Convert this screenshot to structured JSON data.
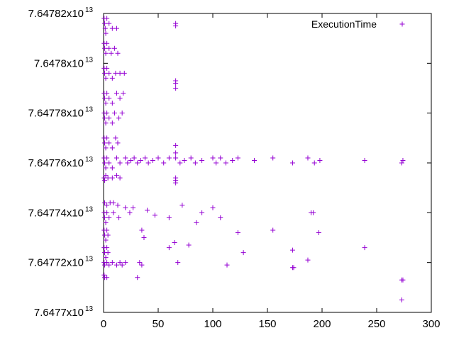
{
  "chart_data": {
    "type": "scatter",
    "title": "",
    "xlabel": "",
    "ylabel": "",
    "xlim": [
      0,
      300
    ],
    "ylim": [
      76477000000000.0,
      76478200000000.0
    ],
    "xticks": [
      {
        "value": 0,
        "label": "0"
      },
      {
        "value": 50,
        "label": "50"
      },
      {
        "value": 100,
        "label": "100"
      },
      {
        "value": 150,
        "label": "150"
      },
      {
        "value": 200,
        "label": "200"
      },
      {
        "value": 250,
        "label": "250"
      },
      {
        "value": 300,
        "label": "300"
      }
    ],
    "yticks": [
      {
        "value": 76477000000000.0,
        "mantissa": "7.6477x10",
        "exp": "13"
      },
      {
        "value": 76477200000000.0,
        "mantissa": "7.64772x10",
        "exp": "13"
      },
      {
        "value": 76477400000000.0,
        "mantissa": "7.64774x10",
        "exp": "13"
      },
      {
        "value": 76477600000000.0,
        "mantissa": "7.64776x10",
        "exp": "13"
      },
      {
        "value": 76477800000000.0,
        "mantissa": "7.64778x10",
        "exp": "13"
      },
      {
        "value": 76478000000000.0,
        "mantissa": "7.6478x10",
        "exp": "13"
      },
      {
        "value": 76478200000000.0,
        "mantissa": "7.64782x10",
        "exp": "13"
      }
    ],
    "grid": false,
    "legend_position": "top-right",
    "series": [
      {
        "name": "ExecutionTime",
        "marker": "plus",
        "color": "#9400d3",
        "points": [
          [
            0.5,
            76478180000000.0
          ],
          [
            1.0,
            76478160000000.0
          ],
          [
            1.5,
            76478140000000.0
          ],
          [
            2.0,
            76478120000000.0
          ],
          [
            3.0,
            76478180000000.0
          ],
          [
            5.0,
            76478160000000.0
          ],
          [
            8.0,
            76478140000000.0
          ],
          [
            12.0,
            76478140000000.0
          ],
          [
            0.5,
            76478080000000.0
          ],
          [
            1.0,
            76478060000000.0
          ],
          [
            2.0,
            76478040000000.0
          ],
          [
            3.0,
            76478080000000.0
          ],
          [
            5.0,
            76478060000000.0
          ],
          [
            7.0,
            76478040000000.0
          ],
          [
            10.0,
            76478060000000.0
          ],
          [
            13.0,
            76478040000000.0
          ],
          [
            0.5,
            76477980000000.0
          ],
          [
            1.0,
            76477960000000.0
          ],
          [
            2.0,
            76477940000000.0
          ],
          [
            3.0,
            76477980000000.0
          ],
          [
            5.0,
            76477960000000.0
          ],
          [
            8.0,
            76477940000000.0
          ],
          [
            11.0,
            76477960000000.0
          ],
          [
            15.0,
            76477960000000.0
          ],
          [
            19.0,
            76477960000000.0
          ],
          [
            0.5,
            76477880000000.0
          ],
          [
            1.0,
            76477860000000.0
          ],
          [
            2.0,
            76477840000000.0
          ],
          [
            3.0,
            76477880000000.0
          ],
          [
            5.0,
            76477860000000.0
          ],
          [
            8.0,
            76477840000000.0
          ],
          [
            12.0,
            76477880000000.0
          ],
          [
            15.0,
            76477860000000.0
          ],
          [
            18.0,
            76477880000000.0
          ],
          [
            0.5,
            76477800000000.0
          ],
          [
            1.0,
            76477780000000.0
          ],
          [
            2.0,
            76477760000000.0
          ],
          [
            3.0,
            76477800000000.0
          ],
          [
            5.0,
            76477780000000.0
          ],
          [
            8.0,
            76477760000000.0
          ],
          [
            10.0,
            76477800000000.0
          ],
          [
            14.0,
            76477780000000.0
          ],
          [
            17.0,
            76477800000000.0
          ],
          [
            0.5,
            76477700000000.0
          ],
          [
            1.0,
            76477680000000.0
          ],
          [
            2.0,
            76477660000000.0
          ],
          [
            3.0,
            76477700000000.0
          ],
          [
            5.0,
            76477680000000.0
          ],
          [
            8.0,
            76477660000000.0
          ],
          [
            11.0,
            76477700000000.0
          ],
          [
            13.0,
            76477680000000.0
          ],
          [
            0.5,
            76477620000000.0
          ],
          [
            1.0,
            76477600000000.0
          ],
          [
            2.0,
            76477580000000.0
          ],
          [
            3.0,
            76477620000000.0
          ],
          [
            5.0,
            76477600000000.0
          ],
          [
            8.0,
            76477580000000.0
          ],
          [
            12.0,
            76477620000000.0
          ],
          [
            15.0,
            76477600000000.0
          ],
          [
            0.5,
            76477540000000.0
          ],
          [
            1.0,
            76477530000000.0
          ],
          [
            2.0,
            76477550000000.0
          ],
          [
            4.0,
            76477540000000.0
          ],
          [
            8.0,
            76477540000000.0
          ],
          [
            12.0,
            76477550000000.0
          ],
          [
            15.0,
            76477540000000.0
          ],
          [
            20.0,
            76477620000000.0
          ],
          [
            22.0,
            76477600000000.0
          ],
          [
            25.0,
            76477610000000.0
          ],
          [
            28.0,
            76477620000000.0
          ],
          [
            31.0,
            76477600000000.0
          ],
          [
            34.0,
            76477610000000.0
          ],
          [
            38.0,
            76477620000000.0
          ],
          [
            41.0,
            76477600000000.0
          ],
          [
            45.0,
            76477610000000.0
          ],
          [
            50.0,
            76477620000000.0
          ],
          [
            55.0,
            76477600000000.0
          ],
          [
            60.0,
            76477620000000.0
          ],
          [
            66.0,
            76477620000000.0
          ],
          [
            70.0,
            76477600000000.0
          ],
          [
            74.0,
            76477610000000.0
          ],
          [
            80.0,
            76477620000000.0
          ],
          [
            84.0,
            76477600000000.0
          ],
          [
            90.0,
            76477610000000.0
          ],
          [
            100.0,
            76477620000000.0
          ],
          [
            103.0,
            76477600000000.0
          ],
          [
            107.0,
            76477620000000.0
          ],
          [
            112.0,
            76477600000000.0
          ],
          [
            118.0,
            76477610000000.0
          ],
          [
            123.0,
            76477620000000.0
          ],
          [
            138.0,
            76477610000000.0
          ],
          [
            155.0,
            76477620000000.0
          ],
          [
            173.0,
            76477600000000.0
          ],
          [
            187.0,
            76477620000000.0
          ],
          [
            193.0,
            76477600000000.0
          ],
          [
            198.0,
            76477610000000.0
          ],
          [
            239.0,
            76477610000000.0
          ],
          [
            273.0,
            76477600000000.0
          ],
          [
            274.0,
            76477610000000.0
          ],
          [
            66.0,
            76478150000000.0
          ],
          [
            66.0,
            76478160000000.0
          ],
          [
            66.0,
            76477920000000.0
          ],
          [
            66.0,
            76477900000000.0
          ],
          [
            66.0,
            76477930000000.0
          ],
          [
            66.0,
            76477670000000.0
          ],
          [
            66.0,
            76477640000000.0
          ],
          [
            66.0,
            76477530000000.0
          ],
          [
            66.0,
            76477520000000.0
          ],
          [
            66.0,
            76477540000000.0
          ],
          [
            1.0,
            76477440000000.0
          ],
          [
            3.0,
            76477430000000.0
          ],
          [
            6.0,
            76477440000000.0
          ],
          [
            9.0,
            76477440000000.0
          ],
          [
            13.0,
            76477430000000.0
          ],
          [
            0.5,
            76477400000000.0
          ],
          [
            1.0,
            76477380000000.0
          ],
          [
            2.0,
            76477360000000.0
          ],
          [
            3.0,
            76477400000000.0
          ],
          [
            5.0,
            76477380000000.0
          ],
          [
            9.0,
            76477400000000.0
          ],
          [
            14.0,
            76477380000000.0
          ],
          [
            0.5,
            76477330000000.0
          ],
          [
            1.0,
            76477310000000.0
          ],
          [
            2.0,
            76477290000000.0
          ],
          [
            3.0,
            76477330000000.0
          ],
          [
            4.0,
            76477310000000.0
          ],
          [
            0.5,
            76477260000000.0
          ],
          [
            1.0,
            76477240000000.0
          ],
          [
            2.0,
            76477220000000.0
          ],
          [
            3.0,
            76477260000000.0
          ],
          [
            4.0,
            76477240000000.0
          ],
          [
            0.5,
            76477200000000.0
          ],
          [
            1.0,
            76477190000000.0
          ],
          [
            3.0,
            76477200000000.0
          ],
          [
            5.0,
            76477190000000.0
          ],
          [
            8.0,
            76477200000000.0
          ],
          [
            12.0,
            76477190000000.0
          ],
          [
            0.5,
            76477150000000.0
          ],
          [
            1.0,
            76477140000000.0
          ],
          [
            3.0,
            76477140000000.0
          ],
          [
            20.0,
            76477420000000.0
          ],
          [
            24.0,
            76477400000000.0
          ],
          [
            27.0,
            76477420000000.0
          ],
          [
            35.0,
            76477330000000.0
          ],
          [
            37.0,
            76477300000000.0
          ],
          [
            40.0,
            76477410000000.0
          ],
          [
            47.0,
            76477390000000.0
          ],
          [
            60.0,
            76477380000000.0
          ],
          [
            65.0,
            76477280000000.0
          ],
          [
            60.0,
            76477260000000.0
          ],
          [
            72.0,
            76477430000000.0
          ],
          [
            78.0,
            76477270000000.0
          ],
          [
            85.0,
            76477360000000.0
          ],
          [
            90.0,
            76477400000000.0
          ],
          [
            100.0,
            76477420000000.0
          ],
          [
            107.0,
            76477380000000.0
          ],
          [
            123.0,
            76477320000000.0
          ],
          [
            128.0,
            76477240000000.0
          ],
          [
            155.0,
            76477330000000.0
          ],
          [
            173.0,
            76477250000000.0
          ],
          [
            190.0,
            76477400000000.0
          ],
          [
            192.0,
            76477400000000.0
          ],
          [
            197.0,
            76477320000000.0
          ],
          [
            239.0,
            76477260000000.0
          ],
          [
            15.0,
            76477200000000.0
          ],
          [
            17.0,
            76477190000000.0
          ],
          [
            20.0,
            76477200000000.0
          ],
          [
            33.0,
            76477200000000.0
          ],
          [
            35.0,
            76477190000000.0
          ],
          [
            68.0,
            76477200000000.0
          ],
          [
            113.0,
            76477190000000.0
          ],
          [
            173.0,
            76477180000000.0
          ],
          [
            174.0,
            76477180000000.0
          ],
          [
            187.0,
            76477210000000.0
          ],
          [
            31.0,
            76477140000000.0
          ],
          [
            273.0,
            76477130000000.0
          ],
          [
            274.0,
            76477130000000.0
          ],
          [
            273.0,
            76477050000000.0
          ]
        ]
      }
    ]
  }
}
